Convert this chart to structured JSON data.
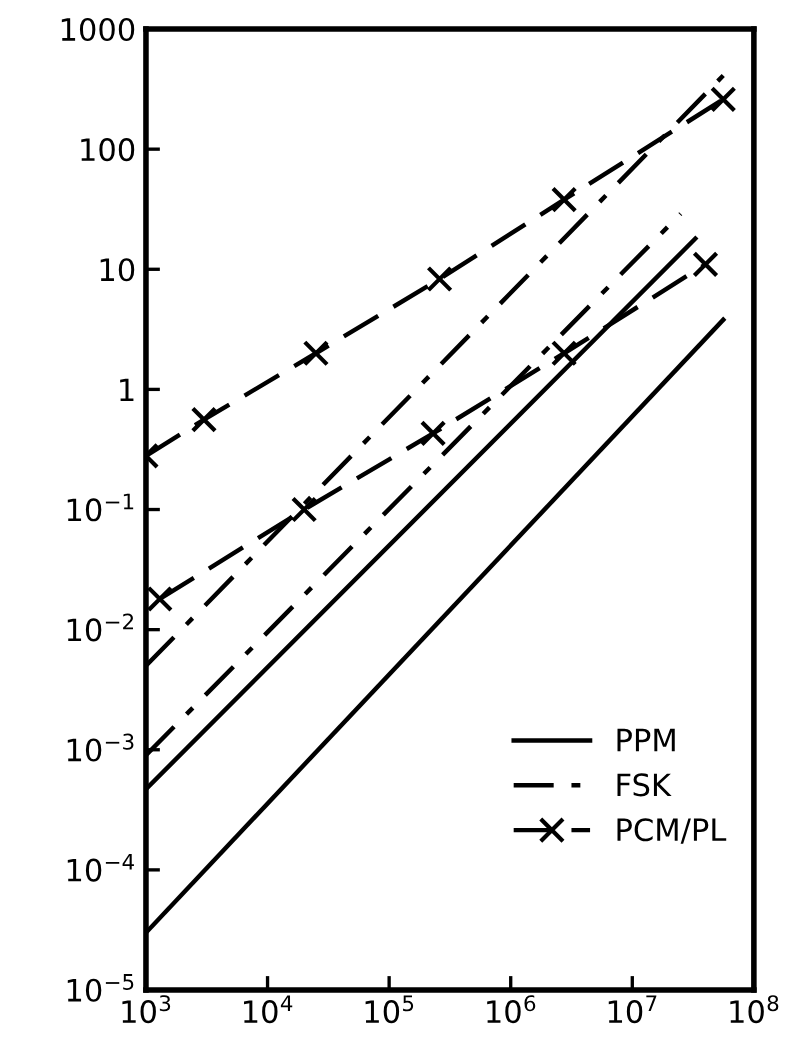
{
  "chart_data": {
    "type": "line",
    "log": "xy",
    "xlim": [
      1000,
      100000000
    ],
    "ylim": [
      1e-05,
      1000
    ],
    "xticks": [
      {
        "value": 1000,
        "label": "10$^{3}$"
      },
      {
        "value": 10000,
        "label": "10$^{4}$"
      },
      {
        "value": 100000,
        "label": "10$^{5}$"
      },
      {
        "value": 1000000,
        "label": "10$^{6}$"
      },
      {
        "value": 10000000,
        "label": "10$^{7}$"
      },
      {
        "value": 100000000,
        "label": "10$^{8}$"
      }
    ],
    "yticks": [
      {
        "value": 1e-05,
        "label": "10$^{−5}$"
      },
      {
        "value": 0.0001,
        "label": "10$^{−4}$"
      },
      {
        "value": 0.001,
        "label": "10$^{−3}$"
      },
      {
        "value": 0.01,
        "label": "10$^{−2}$"
      },
      {
        "value": 0.1,
        "label": "10$^{−1}$"
      },
      1,
      10,
      100,
      1000
    ],
    "grid": false,
    "legend": "bottom right",
    "series": [
      {
        "name": "PPM",
        "color": "#000000",
        "line_style": "solid",
        "marker": "none",
        "x": [
          1000,
          56000000
        ],
        "values": [
          3e-05,
          3.8
        ]
      },
      {
        "color": "#000000",
        "line_style": "solid",
        "marker": "none",
        "x": [
          1000,
          33000000
        ],
        "values": [
          0.00047,
          18
        ]
      },
      {
        "name": "FSK",
        "color": "#000000",
        "line_style": "dashdot",
        "marker": "none",
        "x": [
          1000,
          56000000
        ],
        "values": [
          0.005,
          410
        ]
      },
      {
        "color": "#000000",
        "line_style": "dashdot",
        "marker": "none",
        "x": [
          1000,
          25000000
        ],
        "values": [
          0.0009,
          29
        ]
      },
      {
        "name": "PCM/PL",
        "color": "#000000",
        "line_style": "dashed",
        "marker": "cross",
        "x": [
          1000,
          3000,
          25000,
          260000,
          2750000,
          56000000
        ],
        "values": [
          0.28,
          0.56,
          2,
          8.3,
          38,
          260
        ]
      },
      {
        "color": "#000000",
        "line_style": "dashed",
        "marker": "cross",
        "x": [
          1300,
          20000,
          230000,
          2750000,
          40000000
        ],
        "values": [
          0.018,
          0.1,
          0.43,
          2,
          11
        ]
      }
    ]
  }
}
